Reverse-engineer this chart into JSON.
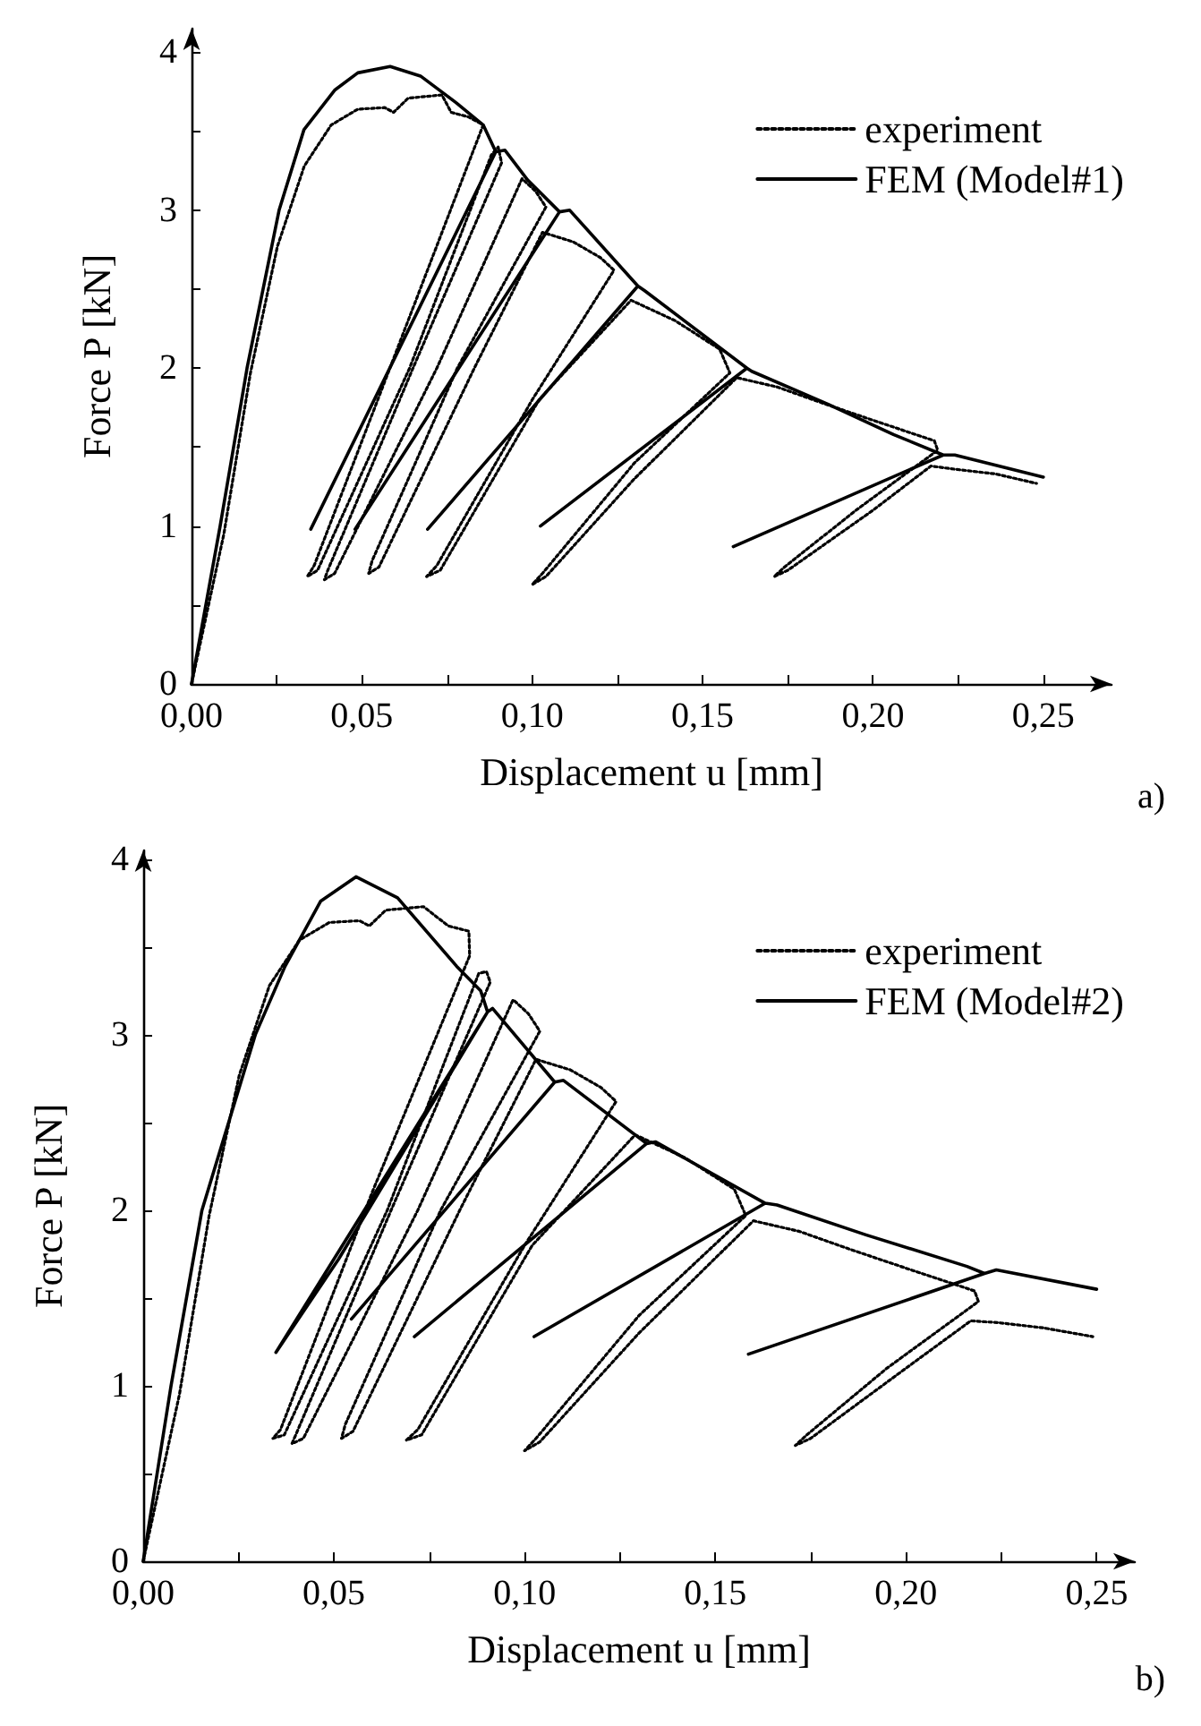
{
  "chart_data": [
    {
      "type": "line",
      "xlabel": "Displacement u [mm]",
      "ylabel": "Force P [kN]",
      "annotations": [
        "a)"
      ],
      "xlim": [
        0,
        0.27
      ],
      "ylim": [
        0,
        4.15
      ],
      "xticks": [
        {
          "value": 0,
          "label": "0,00"
        },
        {
          "value": 0.025,
          "label": null
        },
        {
          "value": 0.05,
          "label": "0,05"
        },
        {
          "value": 0.075,
          "label": null
        },
        {
          "value": 0.1,
          "label": "0,10"
        },
        {
          "value": 0.125,
          "label": null
        },
        {
          "value": 0.15,
          "label": "0,15"
        },
        {
          "value": 0.175,
          "label": null
        },
        {
          "value": 0.2,
          "label": "0,20"
        },
        {
          "value": 0.225,
          "label": null
        },
        {
          "value": 0.25,
          "label": "0,25"
        }
      ],
      "yticks": [
        0,
        {
          "value": 0.5,
          "label": null
        },
        1,
        {
          "value": 1.5,
          "label": null
        },
        2,
        {
          "value": 2.5,
          "label": null
        },
        3,
        {
          "value": 3.5,
          "label": null
        },
        4
      ],
      "grid": false,
      "legend": "top right",
      "marker": "none",
      "series": [
        {
          "name": "experiment",
          "color": "#000000",
          "line_style": "dotted",
          "x": [
            0,
            0.0095,
            0.0173,
            0.0252,
            0.0331,
            0.041,
            0.0488,
            0.0567,
            0.0593,
            0.0636,
            0.0735,
            0.0762,
            0.0814,
            0.0856,
            0.06,
            0.036,
            0.034,
            0.037,
            0.064,
            0.088,
            0.09,
            0.091,
            0.065,
            0.04,
            0.039,
            0.042,
            0.072,
            0.097,
            0.101,
            0.104,
            0.078,
            0.053,
            0.052,
            0.055,
            0.083,
            0.103,
            0.112,
            0.12,
            0.124,
            0.1,
            0.072,
            0.069,
            0.073,
            0.102,
            0.129,
            0.142,
            0.155,
            0.158,
            0.13,
            0.103,
            0.1,
            0.104,
            0.13,
            0.16,
            0.172,
            0.185,
            0.2,
            0.218,
            0.219,
            0.195,
            0.174,
            0.171,
            0.175,
            0.2,
            0.217,
            0.224,
            0.236,
            0.248
          ],
          "values": [
            0,
            0.95,
            1.97,
            2.77,
            3.28,
            3.54,
            3.64,
            3.65,
            3.62,
            3.71,
            3.73,
            3.62,
            3.59,
            3.54,
            2.1,
            0.75,
            0.68,
            0.72,
            2.0,
            3.35,
            3.4,
            3.3,
            2.0,
            0.72,
            0.66,
            0.7,
            2.0,
            3.2,
            3.12,
            3.02,
            2.0,
            0.78,
            0.7,
            0.74,
            2.0,
            2.86,
            2.8,
            2.7,
            2.62,
            1.8,
            0.75,
            0.68,
            0.72,
            1.8,
            2.43,
            2.3,
            2.12,
            1.97,
            1.4,
            0.7,
            0.63,
            0.68,
            1.3,
            1.94,
            1.88,
            1.78,
            1.67,
            1.54,
            1.48,
            1.1,
            0.74,
            0.68,
            0.72,
            1.1,
            1.38,
            1.36,
            1.33,
            1.27
          ]
        },
        {
          "name": "FEM (Model#1)",
          "color": "#000000",
          "line_style": "solid",
          "x": [
            0,
            0.0084,
            0.0163,
            0.0257,
            0.033,
            0.042,
            0.0488,
            0.0583,
            0.0672,
            0.0777,
            0.0856,
            0.0893,
            0.035,
            0.0893,
            0.092,
            0.0987,
            0.108,
            0.048,
            0.108,
            0.111,
            0.131,
            0.0693,
            0.131,
            0.133,
            0.163,
            0.1024,
            0.163,
            0.1644,
            0.187,
            0.206,
            0.2206,
            0.159,
            0.2206,
            0.224,
            0.25
          ],
          "values": [
            0,
            1,
            2,
            3,
            3.51,
            3.76,
            3.87,
            3.91,
            3.85,
            3.68,
            3.54,
            3.37,
            0.98,
            3.37,
            3.38,
            3.19,
            2.99,
            0.98,
            2.99,
            3.0,
            2.52,
            0.98,
            2.52,
            2.49,
            2.0,
            1.0,
            2.0,
            1.98,
            1.77,
            1.58,
            1.45,
            0.87,
            1.45,
            1.45,
            1.31
          ]
        }
      ]
    },
    {
      "type": "line",
      "xlabel": "Displacement u [mm]",
      "ylabel": "Force P [kN]",
      "annotations": [
        "b)"
      ],
      "xlim": [
        0,
        0.26
      ],
      "ylim": [
        0,
        4.05
      ],
      "xticks": [
        {
          "value": 0,
          "label": "0,00"
        },
        {
          "value": 0.025,
          "label": null
        },
        {
          "value": 0.05,
          "label": "0,05"
        },
        {
          "value": 0.075,
          "label": null
        },
        {
          "value": 0.1,
          "label": "0,10"
        },
        {
          "value": 0.125,
          "label": null
        },
        {
          "value": 0.15,
          "label": "0,15"
        },
        {
          "value": 0.175,
          "label": null
        },
        {
          "value": 0.2,
          "label": "0,20"
        },
        {
          "value": 0.225,
          "label": null
        },
        {
          "value": 0.25,
          "label": "0,25"
        }
      ],
      "yticks": [
        0,
        {
          "value": 0.5,
          "label": null
        },
        1,
        {
          "value": 1.5,
          "label": null
        },
        2,
        {
          "value": 2.5,
          "label": null
        },
        3,
        {
          "value": 3.5,
          "label": null
        },
        4
      ],
      "grid": false,
      "legend": "top right",
      "marker": "none",
      "series": [
        {
          "name": "experiment",
          "color": "#000000",
          "line_style": "dotted",
          "x": [
            0,
            0.0095,
            0.0173,
            0.0252,
            0.0331,
            0.041,
            0.0488,
            0.0567,
            0.0593,
            0.0636,
            0.0735,
            0.08,
            0.0854,
            0.0856,
            0.06,
            0.036,
            0.034,
            0.037,
            0.064,
            0.088,
            0.09,
            0.091,
            0.065,
            0.04,
            0.039,
            0.042,
            0.072,
            0.097,
            0.101,
            0.104,
            0.078,
            0.053,
            0.052,
            0.055,
            0.083,
            0.103,
            0.112,
            0.12,
            0.124,
            0.1,
            0.072,
            0.069,
            0.073,
            0.102,
            0.129,
            0.142,
            0.155,
            0.158,
            0.13,
            0.103,
            0.1,
            0.104,
            0.13,
            0.16,
            0.172,
            0.185,
            0.2,
            0.218,
            0.219,
            0.195,
            0.174,
            0.171,
            0.175,
            0.2,
            0.217,
            0.224,
            0.236,
            0.249
          ],
          "values": [
            0,
            0.95,
            1.97,
            2.77,
            3.28,
            3.54,
            3.64,
            3.65,
            3.62,
            3.71,
            3.73,
            3.62,
            3.59,
            3.45,
            2.1,
            0.75,
            0.7,
            0.72,
            2.0,
            3.35,
            3.36,
            3.3,
            2.0,
            0.72,
            0.67,
            0.7,
            2.0,
            3.2,
            3.12,
            3.02,
            2.0,
            0.78,
            0.7,
            0.74,
            2.0,
            2.86,
            2.8,
            2.7,
            2.62,
            1.8,
            0.75,
            0.69,
            0.72,
            1.8,
            2.43,
            2.3,
            2.12,
            1.97,
            1.4,
            0.7,
            0.63,
            0.68,
            1.3,
            1.94,
            1.88,
            1.78,
            1.67,
            1.54,
            1.48,
            1.1,
            0.72,
            0.66,
            0.7,
            1.1,
            1.37,
            1.36,
            1.33,
            1.28
          ]
        },
        {
          "name": "FEM (Model#2)",
          "color": "#000000",
          "line_style": "solid",
          "x": [
            0,
            0.0073,
            0.0154,
            0.0294,
            0.0372,
            0.0465,
            0.0558,
            0.0667,
            0.0822,
            0.0885,
            0.0903,
            0.0348,
            0.0512,
            0.0903,
            0.0916,
            0.1079,
            0.0546,
            0.1079,
            0.1102,
            0.132,
            0.0711,
            0.132,
            0.1343,
            0.1631,
            0.1025,
            0.1631,
            0.1662,
            0.1895,
            0.216,
            0.2206,
            0.1587,
            0.2206,
            0.2237,
            0.25
          ],
          "values": [
            0,
            1,
            2,
            3,
            3.39,
            3.76,
            3.9,
            3.78,
            3.39,
            3.25,
            3.13,
            1.19,
            1.72,
            3.13,
            3.15,
            2.73,
            1.38,
            2.73,
            2.74,
            2.38,
            1.28,
            2.38,
            2.39,
            2.04,
            1.28,
            2.04,
            2.03,
            1.86,
            1.68,
            1.64,
            1.18,
            1.64,
            1.66,
            1.55
          ]
        }
      ]
    }
  ]
}
